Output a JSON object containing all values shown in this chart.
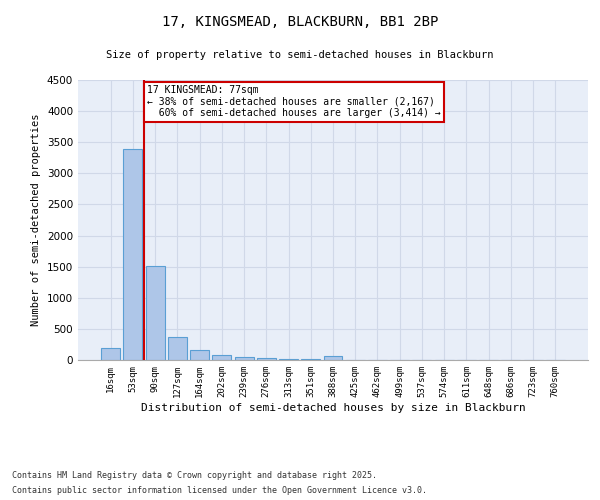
{
  "title1": "17, KINGSMEAD, BLACKBURN, BB1 2BP",
  "title2": "Size of property relative to semi-detached houses in Blackburn",
  "xlabel": "Distribution of semi-detached houses by size in Blackburn",
  "ylabel": "Number of semi-detached properties",
  "categories": [
    "16sqm",
    "53sqm",
    "90sqm",
    "127sqm",
    "164sqm",
    "202sqm",
    "239sqm",
    "276sqm",
    "313sqm",
    "351sqm",
    "388sqm",
    "425sqm",
    "462sqm",
    "499sqm",
    "537sqm",
    "574sqm",
    "611sqm",
    "648sqm",
    "686sqm",
    "723sqm",
    "760sqm"
  ],
  "values": [
    200,
    3390,
    1510,
    375,
    155,
    80,
    45,
    28,
    18,
    14,
    68,
    5,
    0,
    0,
    0,
    0,
    0,
    0,
    0,
    0,
    0
  ],
  "bar_color": "#aec6e8",
  "bar_edge_color": "#5a9fd4",
  "property_label": "17 KINGSMEAD: 77sqm",
  "pct_smaller": 38,
  "pct_larger": 60,
  "count_smaller": 2167,
  "count_larger": 3414,
  "vline_x_index": 1.5,
  "annotation_box_color": "#ffffff",
  "annotation_box_edge": "#cc0000",
  "vline_color": "#cc0000",
  "grid_color": "#d0d8e8",
  "background_color": "#e8eef8",
  "ylim": [
    0,
    4500
  ],
  "yticks": [
    0,
    500,
    1000,
    1500,
    2000,
    2500,
    3000,
    3500,
    4000,
    4500
  ],
  "footnote1": "Contains HM Land Registry data © Crown copyright and database right 2025.",
  "footnote2": "Contains public sector information licensed under the Open Government Licence v3.0."
}
